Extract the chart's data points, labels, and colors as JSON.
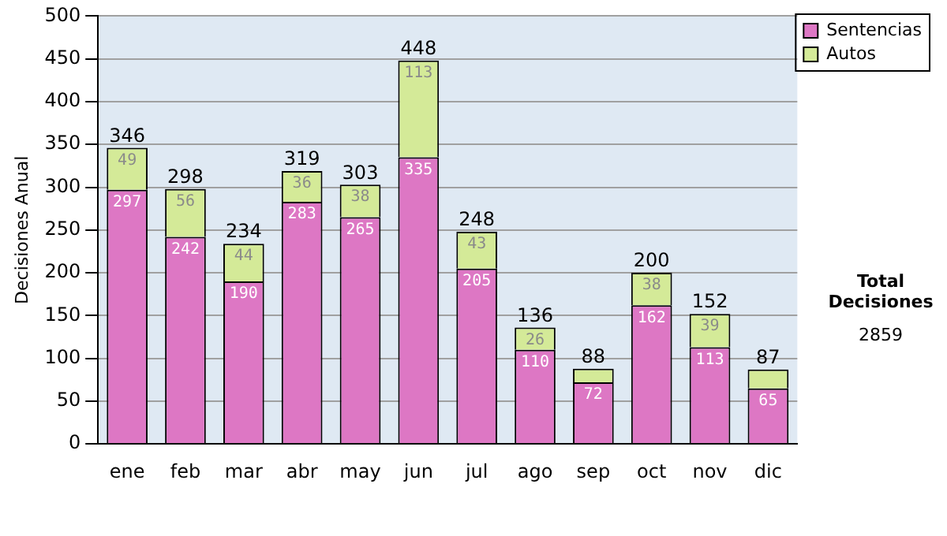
{
  "chart_data": {
    "type": "bar",
    "stacked": true,
    "ylabel": "Decisiones Anual",
    "categories": [
      "ene",
      "feb",
      "mar",
      "abr",
      "may",
      "jun",
      "jul",
      "ago",
      "sep",
      "oct",
      "nov",
      "dic"
    ],
    "series": [
      {
        "name": "Sentencias",
        "color": "#dd77c4",
        "values": [
          297,
          242,
          190,
          283,
          265,
          335,
          205,
          110,
          72,
          162,
          113,
          65
        ],
        "value_labels": [
          "297",
          "242",
          "190",
          "283",
          "265",
          "335",
          "205",
          "110",
          "72",
          "162",
          "113",
          "65"
        ]
      },
      {
        "name": "Autos",
        "color": "#d4ea98",
        "values": [
          49,
          56,
          44,
          36,
          38,
          113,
          43,
          26,
          16,
          38,
          39,
          22
        ],
        "value_labels": [
          "49",
          "56",
          "44",
          "36",
          "38",
          "113",
          "43",
          "26",
          null,
          "38",
          "39",
          null
        ]
      }
    ],
    "totals": [
      "346",
      "298",
      "234",
      "319",
      "303",
      "448",
      "248",
      "136",
      "88",
      "200",
      "152",
      "87"
    ],
    "ylim": [
      0,
      500
    ],
    "yticks": [
      0,
      50,
      100,
      150,
      200,
      250,
      300,
      350,
      400,
      450,
      500
    ],
    "grid": "y",
    "legend": "right",
    "annotations": [
      "Total Decisiones",
      "2859"
    ]
  }
}
